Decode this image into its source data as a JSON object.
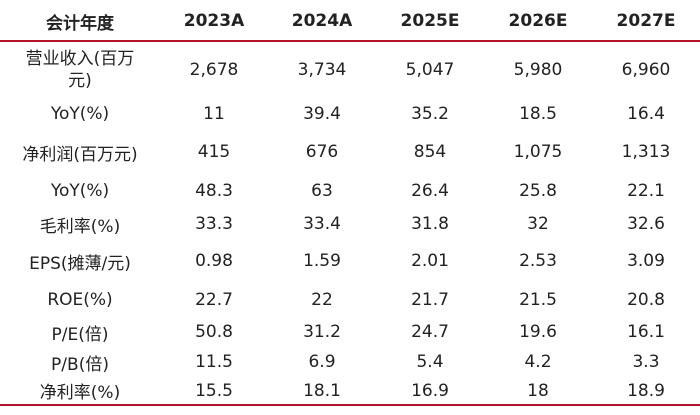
{
  "table": {
    "header": [
      "会计年度",
      "2023A",
      "2024A",
      "2025E",
      "2026E",
      "2027E"
    ],
    "rows": [
      [
        "营业收入(百万元)",
        "2,678",
        "3,734",
        "5,047",
        "5,980",
        "6,960"
      ],
      [
        "YoY(%)",
        "11",
        "39.4",
        "35.2",
        "18.5",
        "16.4"
      ],
      [
        "净利润(百万元)",
        "415",
        "676",
        "854",
        "1,075",
        "1,313"
      ],
      [
        "YoY(%)",
        "48.3",
        "63",
        "26.4",
        "25.8",
        "22.1"
      ],
      [
        "毛利率(%)",
        "33.3",
        "33.4",
        "31.8",
        "32",
        "32.6"
      ],
      [
        "EPS(摊薄/元)",
        "0.98",
        "1.59",
        "2.01",
        "2.53",
        "3.09"
      ],
      [
        "ROE(%)",
        "22.7",
        "22",
        "21.7",
        "21.5",
        "20.8"
      ],
      [
        "P/E(倍)",
        "50.8",
        "31.2",
        "24.7",
        "19.6",
        "16.1"
      ],
      [
        "P/B(倍)",
        "11.5",
        "6.9",
        "5.4",
        "4.2",
        "3.3"
      ],
      [
        "净利率(%)",
        "15.5",
        "18.1",
        "16.9",
        "18",
        "18.9"
      ]
    ]
  }
}
